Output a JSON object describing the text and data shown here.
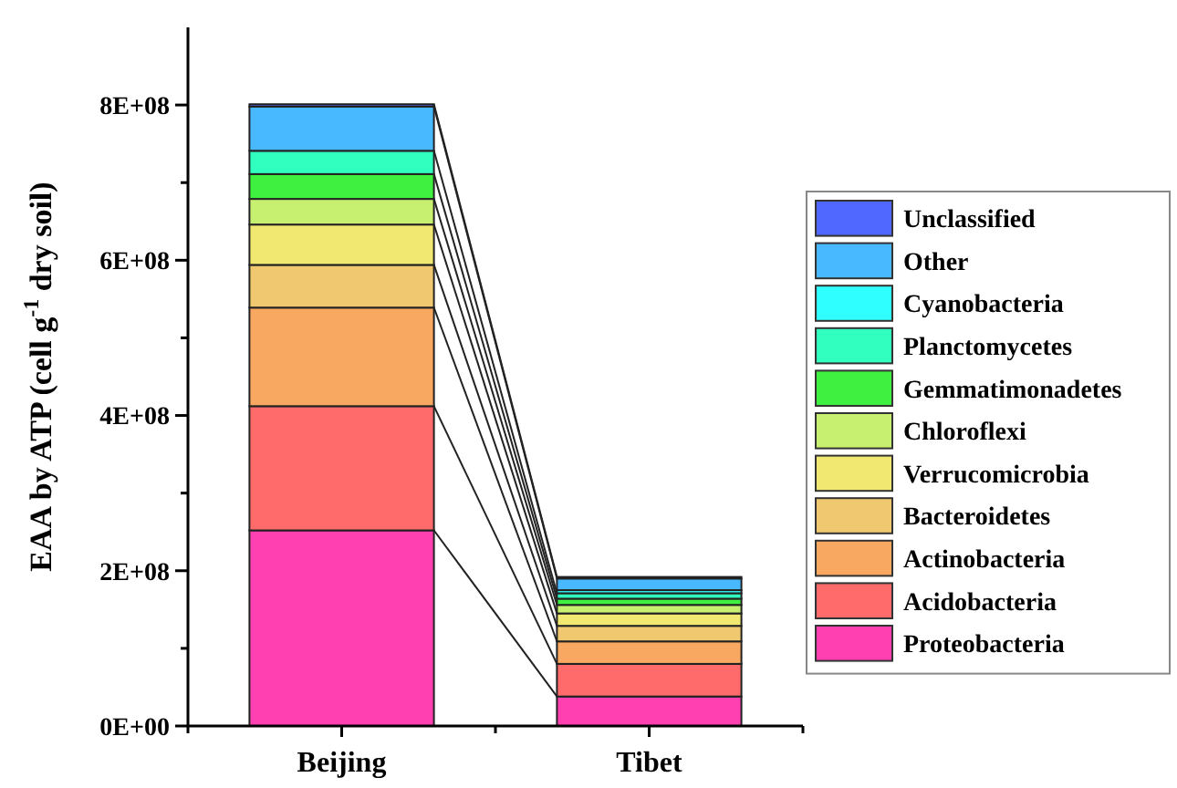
{
  "chart_data": {
    "type": "bar",
    "stacked": true,
    "ylabel": "EAA by ATP (cell g$^{-1}$ dry soil)",
    "categories": [
      "Beijing",
      "Tibet"
    ],
    "ylim": [
      0,
      900000000
    ],
    "yticks": [
      {
        "value": 0,
        "label": "0E+00"
      },
      {
        "value": 100000000,
        "label": null
      },
      {
        "value": 200000000,
        "label": "2E+08"
      },
      {
        "value": 300000000,
        "label": null
      },
      {
        "value": 400000000,
        "label": "4E+08"
      },
      {
        "value": 500000000,
        "label": null
      },
      {
        "value": 600000000,
        "label": "6E+08"
      },
      {
        "value": 700000000,
        "label": null
      },
      {
        "value": 800000000,
        "label": "8E+08"
      }
    ],
    "legend": "right",
    "grid": false,
    "series": [
      {
        "name": "Proteobacteria",
        "color": "#ff40b0",
        "values": [
          252000000,
          38000000
        ]
      },
      {
        "name": "Acidobacteria",
        "color": "#ff6b6b",
        "values": [
          160000000,
          42000000
        ]
      },
      {
        "name": "Actinobacteria",
        "color": "#f8a860",
        "values": [
          127000000,
          29000000
        ]
      },
      {
        "name": "Bacteroidetes",
        "color": "#f0c870",
        "values": [
          55000000,
          20000000
        ]
      },
      {
        "name": "Verrucomicrobia",
        "color": "#f0e870",
        "values": [
          52000000,
          16000000
        ]
      },
      {
        "name": "Chloroflexi",
        "color": "#c8f070",
        "values": [
          33000000,
          11000000
        ]
      },
      {
        "name": "Gemmatimonadetes",
        "color": "#40f040",
        "values": [
          32000000,
          8000000
        ]
      },
      {
        "name": "Planctomycetes",
        "color": "#30ffc0",
        "values": [
          30000000,
          7000000
        ]
      },
      {
        "name": "Cyanobacteria",
        "color": "#30ffff",
        "values": [
          null,
          4000000
        ]
      },
      {
        "name": "Other",
        "color": "#48b8ff",
        "values": [
          57000000,
          15000000
        ]
      },
      {
        "name": "Unclassified",
        "color": "#5068ff",
        "values": [
          3000000,
          2000000
        ]
      }
    ]
  }
}
